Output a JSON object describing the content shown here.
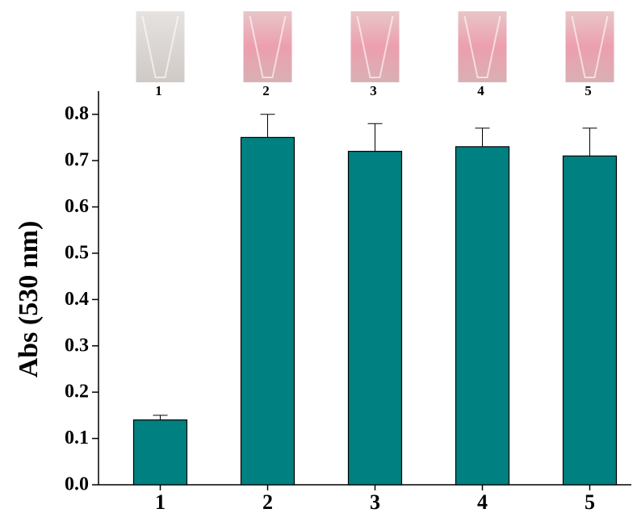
{
  "chart_data": {
    "type": "bar",
    "y_label": "Abs (530 nm)",
    "categories": [
      "1",
      "2",
      "3",
      "4",
      "5"
    ],
    "values": [
      0.14,
      0.75,
      0.72,
      0.73,
      0.71
    ],
    "errors": [
      0.01,
      0.05,
      0.06,
      0.04,
      0.06
    ],
    "color": "#008080",
    "ylim": [
      0,
      0.85
    ],
    "yticks": [
      {
        "value": 0,
        "label": "0.0"
      },
      0.1,
      0.2,
      0.3,
      0.4,
      0.5,
      0.6,
      0.7,
      0.8
    ]
  }
}
